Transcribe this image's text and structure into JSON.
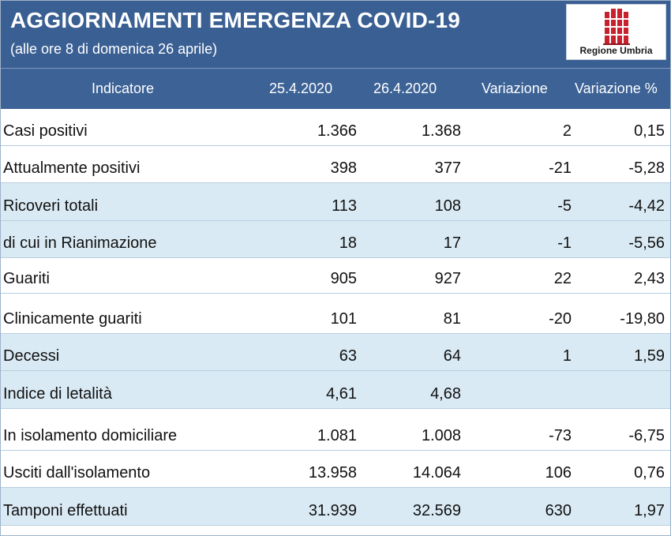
{
  "header": {
    "title": "AGGIORNAMENTI EMERGENZA COVID-19",
    "subtitle": "(alle ore 8 di domenica 26 aprile)",
    "logo_text": "Regione Umbria"
  },
  "colors": {
    "header_bg": "#3a5f93",
    "row_shade": "#daeaf4",
    "logo_red": "#c8202c"
  },
  "table": {
    "columns": [
      "Indicatore",
      "25.4.2020",
      "26.4.2020",
      "Variazione",
      "Variazione %"
    ],
    "rows": [
      [
        "Casi positivi",
        "1.366",
        "1.368",
        "2",
        "0,15"
      ],
      [
        "Attualmente positivi",
        "398",
        "377",
        "-21",
        "-5,28"
      ],
      [
        "Ricoveri totali",
        "113",
        "108",
        "-5",
        "-4,42"
      ],
      [
        "di cui in Rianimazione",
        "18",
        "17",
        "-1",
        "-5,56"
      ],
      [
        "Guariti",
        "905",
        "927",
        "22",
        "2,43"
      ],
      [
        "Clinicamente guariti",
        "101",
        "81",
        "-20",
        "-19,80"
      ],
      [
        "Decessi",
        "63",
        "64",
        "1",
        "1,59"
      ],
      [
        "Indice di letalità",
        "4,61",
        "4,68",
        "",
        ""
      ],
      [
        "In isolamento domiciliare",
        "1.081",
        "1.008",
        "-73",
        "-6,75"
      ],
      [
        "Usciti dall'isolamento",
        "13.958",
        "14.064",
        "106",
        "0,76"
      ],
      [
        "Tamponi effettuati",
        "31.939",
        "32.569",
        "630",
        "1,97"
      ]
    ]
  }
}
